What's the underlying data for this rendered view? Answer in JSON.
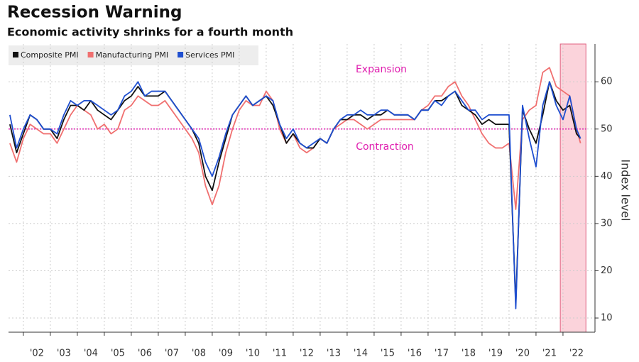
{
  "chart_data": {
    "type": "line",
    "title": "Recession Warning",
    "subtitle": "Economic activity shrinks for a fourth month",
    "y_label": "Index level",
    "annotations": [
      "Expansion",
      "Contraction"
    ],
    "reference_line": 50,
    "reference_color": "#e020b0",
    "shaded_range": [
      2021.9,
      2022.85
    ],
    "shade_color": "#fbd3db",
    "grid": true,
    "legend": "top-left",
    "xlim": [
      2001.45,
      2022.87
    ],
    "ylim": [
      7,
      68
    ],
    "yticks": [
      10,
      20,
      30,
      40,
      50,
      60
    ],
    "xticks": [
      {
        "value": 2002,
        "label": "'02"
      },
      {
        "value": 2003,
        "label": "'03"
      },
      {
        "value": 2004,
        "label": "'04"
      },
      {
        "value": 2005,
        "label": "'05"
      },
      {
        "value": 2006,
        "label": "'06"
      },
      {
        "value": 2007,
        "label": "'07"
      },
      {
        "value": 2008,
        "label": "'08"
      },
      {
        "value": 2009,
        "label": "'09"
      },
      {
        "value": 2010,
        "label": "'10"
      },
      {
        "value": 2011,
        "label": "'11"
      },
      {
        "value": 2012,
        "label": "'12"
      },
      {
        "value": 2013,
        "label": "'13"
      },
      {
        "value": 2014,
        "label": "'14"
      },
      {
        "value": 2015,
        "label": "'15"
      },
      {
        "value": 2016,
        "label": "'16"
      },
      {
        "value": 2017,
        "label": "'17"
      },
      {
        "value": 2018,
        "label": "'18"
      },
      {
        "value": 2019,
        "label": "'19"
      },
      {
        "value": 2020,
        "label": "'20"
      },
      {
        "value": 2021,
        "label": "'21"
      },
      {
        "value": 2022,
        "label": "'22"
      }
    ],
    "x": [
      2001.5,
      2001.75,
      2002,
      2002.25,
      2002.5,
      2002.75,
      2003,
      2003.25,
      2003.5,
      2003.75,
      2004,
      2004.25,
      2004.5,
      2004.75,
      2005,
      2005.25,
      2005.5,
      2005.75,
      2006,
      2006.25,
      2006.5,
      2006.75,
      2007,
      2007.25,
      2007.5,
      2007.75,
      2008,
      2008.25,
      2008.5,
      2008.75,
      2009,
      2009.25,
      2009.5,
      2009.75,
      2010,
      2010.25,
      2010.5,
      2010.75,
      2011,
      2011.25,
      2011.5,
      2011.75,
      2012,
      2012.25,
      2012.5,
      2012.75,
      2013,
      2013.25,
      2013.5,
      2013.75,
      2014,
      2014.25,
      2014.5,
      2014.75,
      2015,
      2015.25,
      2015.5,
      2015.75,
      2016,
      2016.25,
      2016.5,
      2016.75,
      2017,
      2017.25,
      2017.5,
      2017.75,
      2018,
      2018.25,
      2018.5,
      2018.75,
      2019,
      2019.25,
      2019.5,
      2019.75,
      2020,
      2020.25,
      2020.5,
      2020.75,
      2021,
      2021.25,
      2021.5,
      2021.75,
      2022,
      2022.25,
      2022.5,
      2022.65
    ],
    "series": [
      {
        "name": "Manufacturing PMI",
        "color": "#f07070",
        "values": [
          47,
          43,
          48,
          51,
          50,
          49,
          49,
          47,
          50,
          53,
          55,
          54,
          53,
          50,
          51,
          49,
          50,
          54,
          55,
          57,
          56,
          55,
          55,
          56,
          54,
          52,
          50,
          48,
          45,
          38,
          34,
          38,
          45,
          50,
          54,
          56,
          55,
          55,
          58,
          56,
          50,
          47,
          49,
          46,
          45,
          46,
          48,
          47,
          50,
          51,
          52,
          52,
          51,
          50,
          51,
          52,
          52,
          52,
          52,
          52,
          52,
          54,
          55,
          57,
          57,
          59,
          60,
          57,
          55,
          52,
          49,
          47,
          46,
          46,
          47,
          33,
          52,
          54,
          55,
          62,
          63,
          59,
          58,
          57,
          50,
          47
        ]
      },
      {
        "name": "Composite PMI",
        "color": "#111111",
        "values": [
          51,
          45,
          49,
          53,
          52,
          50,
          50,
          48,
          52,
          55,
          55,
          54,
          56,
          54,
          53,
          52,
          54,
          56,
          57,
          59,
          57,
          57,
          57,
          58,
          56,
          54,
          52,
          50,
          47,
          40,
          37,
          43,
          48,
          53,
          55,
          57,
          55,
          56,
          57,
          55,
          51,
          47,
          49,
          47,
          46,
          46,
          48,
          47,
          50,
          52,
          52,
          53,
          53,
          52,
          53,
          53,
          54,
          53,
          53,
          53,
          52,
          54,
          54,
          56,
          56,
          57,
          58,
          55,
          54,
          53,
          51,
          52,
          51,
          51,
          51,
          13,
          54,
          50,
          47,
          53,
          60,
          56,
          54,
          55,
          49,
          48
        ]
      },
      {
        "name": "Services PMI",
        "color": "#1f4fd0",
        "values": [
          53,
          46,
          50,
          53,
          52,
          50,
          50,
          49,
          53,
          56,
          55,
          56,
          56,
          55,
          54,
          53,
          54,
          57,
          58,
          60,
          57,
          58,
          58,
          58,
          56,
          54,
          52,
          50,
          48,
          43,
          40,
          44,
          49,
          53,
          55,
          57,
          55,
          56,
          57,
          56,
          51,
          48,
          50,
          47,
          46,
          47,
          48,
          47,
          50,
          52,
          53,
          53,
          54,
          53,
          53,
          54,
          54,
          53,
          53,
          53,
          52,
          54,
          54,
          56,
          55,
          57,
          58,
          56,
          54,
          54,
          52,
          53,
          53,
          53,
          53,
          12,
          55,
          48,
          42,
          55,
          60,
          55,
          52,
          57,
          50,
          48
        ]
      }
    ]
  }
}
